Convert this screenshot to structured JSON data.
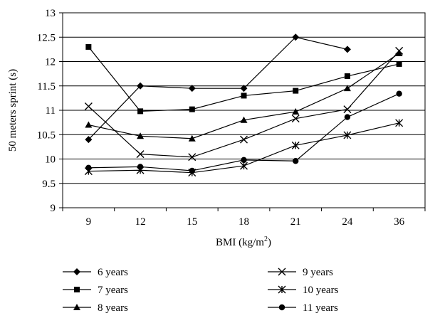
{
  "chart_data": {
    "type": "line",
    "title": "",
    "xlabel": "BMI (kg/m",
    "xlabel_sup": "2",
    "xlabel_tail": ")",
    "ylabel": "50 meters sprint (s)",
    "categories": [
      "9",
      "12",
      "15",
      "18",
      "21",
      "24",
      "36"
    ],
    "ylim": [
      9,
      13
    ],
    "yticks": [
      "9",
      "9.5",
      "10",
      "10.5",
      "11",
      "11.5",
      "12",
      "12.5",
      "13"
    ],
    "grid": "horizontal",
    "legend_position": "bottom",
    "series": [
      {
        "name": "6 years",
        "marker": "diamond",
        "values": [
          10.4,
          11.5,
          11.45,
          11.45,
          12.5,
          12.25,
          null
        ]
      },
      {
        "name": "7 years",
        "marker": "square",
        "values": [
          12.3,
          10.98,
          11.02,
          11.3,
          11.4,
          11.7,
          11.95
        ]
      },
      {
        "name": "8 years",
        "marker": "triangle",
        "values": [
          10.7,
          10.47,
          10.42,
          10.8,
          10.97,
          11.45,
          12.17
        ]
      },
      {
        "name": "9 years",
        "marker": "x",
        "values": [
          11.08,
          10.1,
          10.04,
          10.4,
          10.83,
          11.02,
          12.22
        ]
      },
      {
        "name": "10 years",
        "marker": "asterisk",
        "values": [
          9.75,
          9.77,
          9.72,
          9.86,
          10.28,
          10.49,
          10.74
        ]
      },
      {
        "name": "11 years",
        "marker": "circle",
        "values": [
          9.82,
          9.84,
          9.76,
          9.98,
          9.96,
          10.86,
          11.34
        ]
      }
    ]
  }
}
